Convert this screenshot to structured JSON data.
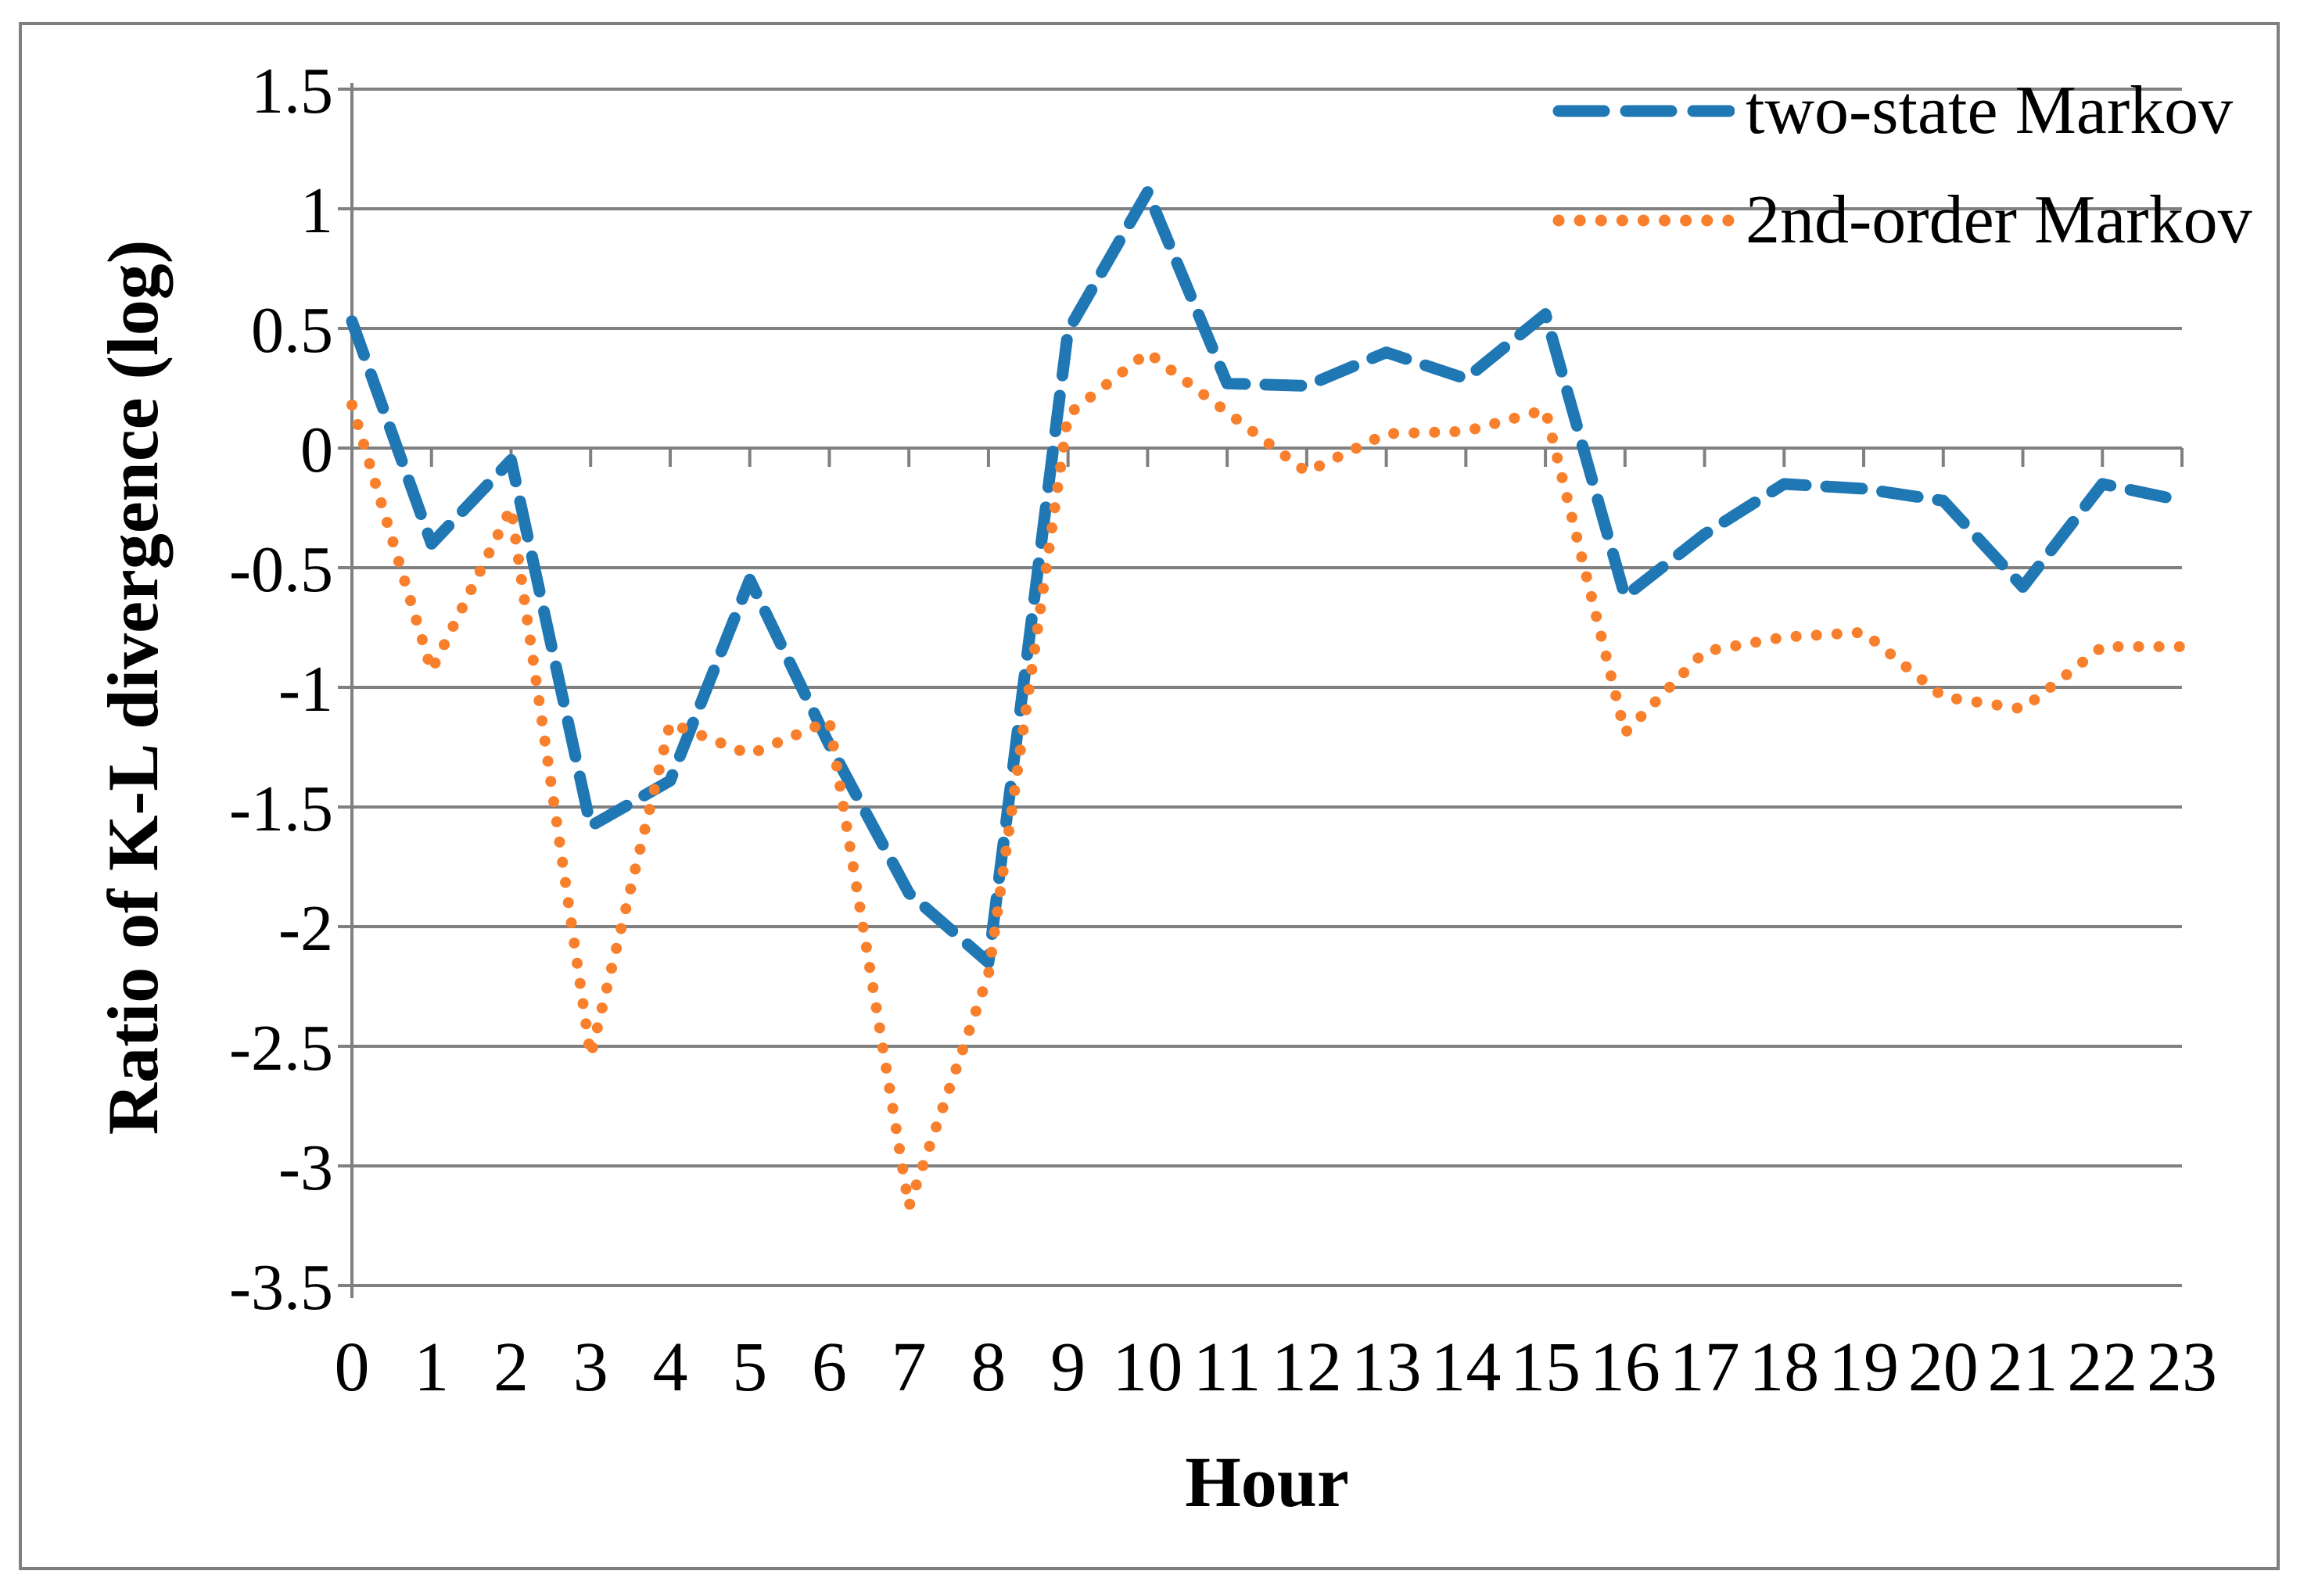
{
  "chart_data": {
    "type": "line",
    "title": "",
    "xlabel": "Hour",
    "ylabel": "Ratio of K-L divergence (log)",
    "xlim": [
      0,
      23
    ],
    "ylim": [
      -3.5,
      1.5
    ],
    "grid": "horizontal",
    "legend_position": "top-right",
    "x": [
      0,
      1,
      2,
      3,
      4,
      5,
      6,
      7,
      8,
      9,
      10,
      11,
      12,
      13,
      14,
      15,
      16,
      17,
      18,
      19,
      20,
      21,
      22,
      23
    ],
    "xtick_labels": [
      "0",
      "1",
      "2",
      "3",
      "4",
      "5",
      "6",
      "7",
      "8",
      "9",
      "10",
      "11",
      "12",
      "13",
      "14",
      "15",
      "16",
      "17",
      "18",
      "19",
      "20",
      "21",
      "22",
      "23"
    ],
    "yticks": [
      1.5,
      1,
      0.5,
      0,
      -0.5,
      -1,
      -1.5,
      -2,
      -2.5,
      -3,
      -3.5
    ],
    "ytick_labels": [
      "1.5",
      "1",
      "0.5",
      "0",
      "-0.5",
      "-1",
      "-1.5",
      "-2",
      "-2.5",
      "-3",
      "-3.5"
    ],
    "series": [
      {
        "name": "two-state Markov",
        "color": "#1F77B4",
        "style": "dashed",
        "values": [
          0.53,
          -0.4,
          -0.05,
          -1.58,
          -1.39,
          -0.55,
          -1.24,
          -1.86,
          -2.15,
          0.49,
          1.07,
          0.27,
          0.26,
          0.4,
          0.29,
          0.56,
          -0.62,
          -0.36,
          -0.15,
          -0.17,
          -0.22,
          -0.58,
          -0.15,
          -0.22
        ]
      },
      {
        "name": "2nd-order Markov",
        "color": "#F8802D",
        "style": "dotted",
        "values": [
          0.18,
          -0.93,
          -0.25,
          -2.54,
          -1.15,
          -1.28,
          -1.14,
          -3.17,
          -2.2,
          0.14,
          0.4,
          0.15,
          -0.1,
          0.06,
          0.07,
          0.16,
          -1.19,
          -0.85,
          -0.79,
          -0.77,
          -1.04,
          -1.09,
          -0.83,
          -0.83
        ]
      }
    ],
    "axis_colors": {
      "grid": "#808080",
      "text": "#000000"
    }
  }
}
